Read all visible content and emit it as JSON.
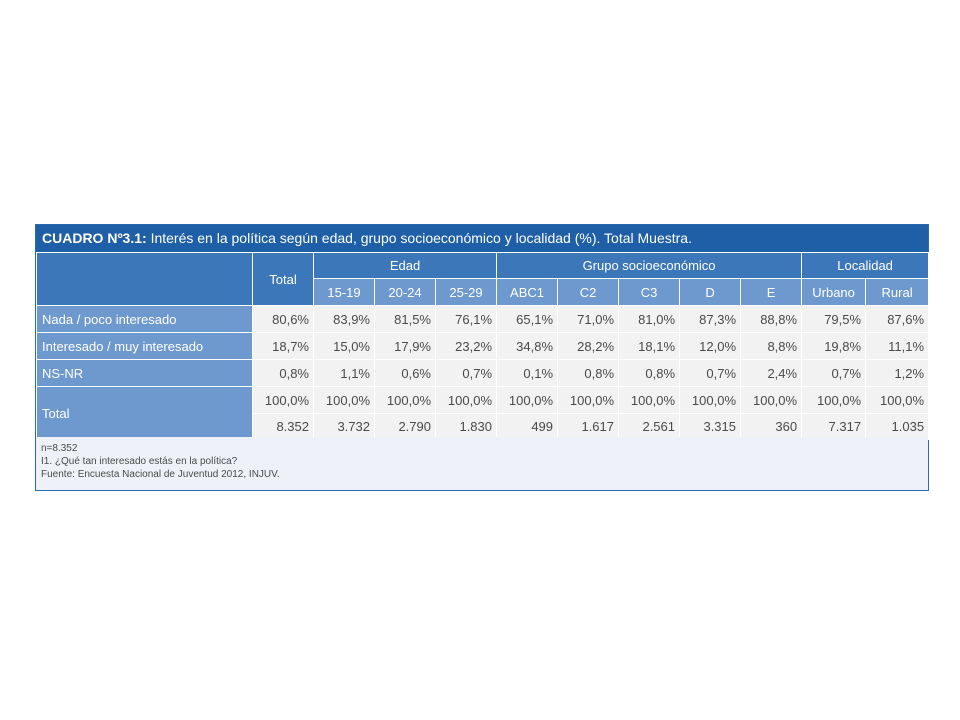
{
  "title": {
    "prefix": "CUADRO Nº3.1:",
    "text": " Interés en la política según edad, grupo socioeconómico y localidad (%). Total Muestra."
  },
  "header": {
    "total": "Total",
    "groups": [
      "Edad",
      "Grupo socioeconómico",
      "Localidad"
    ],
    "subcolumns": [
      "15-19",
      "20-24",
      "25-29",
      "ABC1",
      "C2",
      "C3",
      "D",
      "E",
      "Urbano",
      "Rural"
    ]
  },
  "rows": [
    {
      "label": "Nada / poco interesado",
      "values": [
        "80,6%",
        "83,9%",
        "81,5%",
        "76,1%",
        "65,1%",
        "71,0%",
        "81,0%",
        "87,3%",
        "88,8%",
        "79,5%",
        "87,6%"
      ]
    },
    {
      "label": "Interesado / muy interesado",
      "values": [
        "18,7%",
        "15,0%",
        "17,9%",
        "23,2%",
        "34,8%",
        "28,2%",
        "18,1%",
        "12,0%",
        "8,8%",
        "19,8%",
        "11,1%"
      ]
    },
    {
      "label": "NS-NR",
      "values": [
        "0,8%",
        "1,1%",
        "0,6%",
        "0,7%",
        "0,1%",
        "0,8%",
        "0,8%",
        "0,7%",
        "2,4%",
        "0,7%",
        "1,2%"
      ]
    }
  ],
  "total_row": {
    "label": "Total",
    "percent": [
      "100,0%",
      "100,0%",
      "100,0%",
      "100,0%",
      "100,0%",
      "100,0%",
      "100,0%",
      "100,0%",
      "100,0%",
      "100,0%",
      "100,0%"
    ],
    "counts": [
      "8.352",
      "3.732",
      "2.790",
      "1.830",
      "499",
      "1.617",
      "2.561",
      "3.315",
      "360",
      "7.317",
      "1.035"
    ]
  },
  "notes": [
    "n=8.352",
    "I1. ¿Qué tan interesado estás en la política?",
    "Fuente: Encuesta Nacional de Juventud 2012, INJUV."
  ]
}
